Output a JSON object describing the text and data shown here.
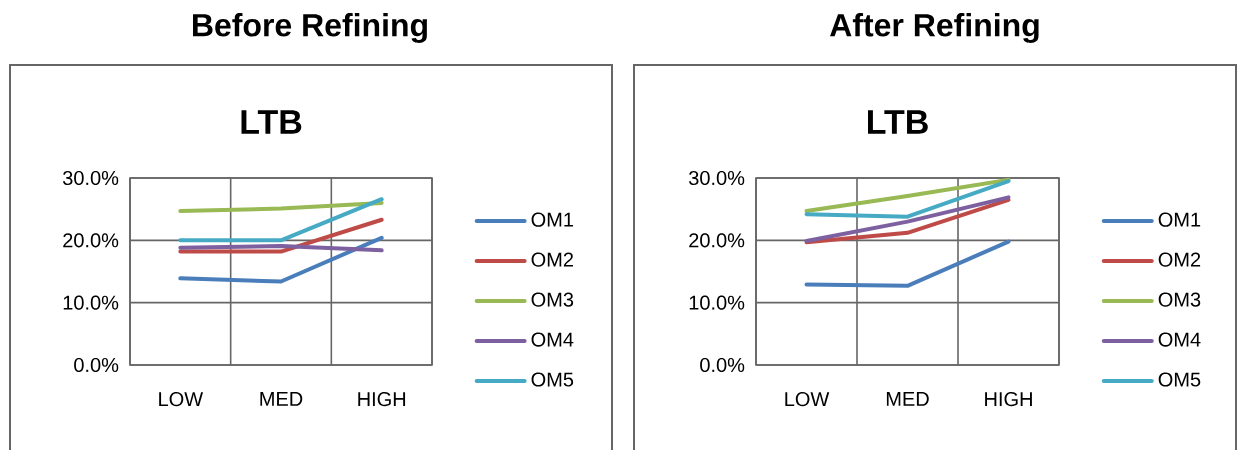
{
  "chart_data": [
    {
      "type": "line",
      "title": "Before Refining",
      "subtitle": "LTB",
      "categories": [
        "LOW",
        "MED",
        "HIGH"
      ],
      "series": [
        {
          "name": "OM1",
          "color": "#4a7ebb",
          "values": [
            13.9,
            13.4,
            20.4
          ]
        },
        {
          "name": "OM2",
          "color": "#be4b48",
          "values": [
            18.2,
            18.2,
            23.3
          ]
        },
        {
          "name": "OM3",
          "color": "#98b954",
          "values": [
            24.7,
            25.1,
            26.0
          ]
        },
        {
          "name": "OM4",
          "color": "#7d60a0",
          "values": [
            18.8,
            19.1,
            18.4
          ]
        },
        {
          "name": "OM5",
          "color": "#46aac5",
          "values": [
            20.0,
            20.0,
            26.6
          ]
        }
      ],
      "ylim": [
        0,
        30
      ],
      "yticks": [
        {
          "value": 0,
          "label": "0.0%"
        },
        {
          "value": 10,
          "label": "10.0%"
        },
        {
          "value": 20,
          "label": "20.0%"
        },
        {
          "value": 30,
          "label": "30.0%"
        }
      ],
      "grid": true,
      "legend": "right",
      "marker": "none",
      "line_style": "solid"
    },
    {
      "type": "line",
      "title": "After Refining",
      "subtitle": "LTB",
      "categories": [
        "LOW",
        "MED",
        "HIGH"
      ],
      "series": [
        {
          "name": "OM1",
          "color": "#4a7ebb",
          "values": [
            12.9,
            12.7,
            19.8
          ]
        },
        {
          "name": "OM2",
          "color": "#be4b48",
          "values": [
            19.7,
            21.2,
            26.5
          ]
        },
        {
          "name": "OM3",
          "color": "#98b954",
          "values": [
            24.7,
            27.1,
            29.7
          ]
        },
        {
          "name": "OM4",
          "color": "#7d60a0",
          "values": [
            19.9,
            23.0,
            26.9
          ]
        },
        {
          "name": "OM5",
          "color": "#46aac5",
          "values": [
            24.2,
            23.8,
            29.5
          ]
        }
      ],
      "ylim": [
        0,
        30
      ],
      "yticks": [
        {
          "value": 0,
          "label": "0.0%"
        },
        {
          "value": 10,
          "label": "10.0%"
        },
        {
          "value": 20,
          "label": "20.0%"
        },
        {
          "value": 30,
          "label": "30.0%"
        }
      ],
      "grid": true,
      "legend": "right",
      "marker": "none",
      "line_style": "solid"
    }
  ]
}
